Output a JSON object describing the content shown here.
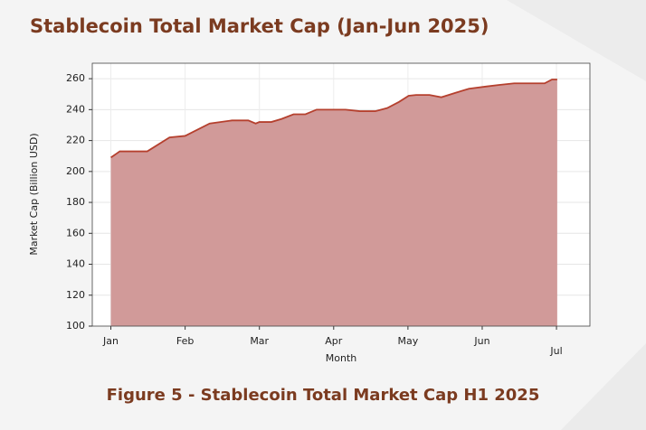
{
  "chart_data": {
    "type": "area",
    "title": "Stablecoin Total Market Cap (Jan-Jun 2025)",
    "caption": "Figure 5 - Stablecoin Total Market Cap H1 2025",
    "xlabel": "Month",
    "ylabel": "Market Cap (Billion USD)",
    "x": [
      0,
      0.12,
      0.49,
      0.79,
      1.0,
      1.33,
      1.63,
      1.85,
      1.95,
      2.0,
      2.16,
      2.3,
      2.46,
      2.62,
      2.77,
      3.16,
      3.35,
      3.56,
      3.72,
      3.88,
      4.01,
      4.11,
      4.29,
      4.45,
      4.65,
      4.82,
      5.06,
      5.23,
      5.43,
      5.84,
      5.94,
      6.01
    ],
    "series": [
      {
        "name": "Market Cap",
        "color": "#b5402e",
        "fill": "#d19a99",
        "values": [
          209,
          213,
          213,
          222,
          223,
          231,
          233,
          233,
          231,
          232,
          232,
          234,
          237,
          237,
          240,
          240,
          239,
          239,
          241,
          245,
          249,
          249.5,
          249.5,
          248,
          251,
          253.5,
          255,
          256,
          257,
          257,
          259.5,
          259.5
        ]
      }
    ],
    "xlim": [
      -0.25,
      6.45
    ],
    "xticks": [
      {
        "value": 0,
        "label": "Jan"
      },
      {
        "value": 1,
        "label": "Feb"
      },
      {
        "value": 2,
        "label": "Mar"
      },
      {
        "value": 3,
        "label": "Apr"
      },
      {
        "value": 4,
        "label": "May"
      },
      {
        "value": 5,
        "label": "Jun"
      },
      {
        "value": 6,
        "label": "Jul"
      }
    ],
    "ylim": [
      100,
      270
    ],
    "yticks": [
      100,
      120,
      140,
      160,
      180,
      200,
      220,
      240,
      260
    ],
    "grid": true
  }
}
